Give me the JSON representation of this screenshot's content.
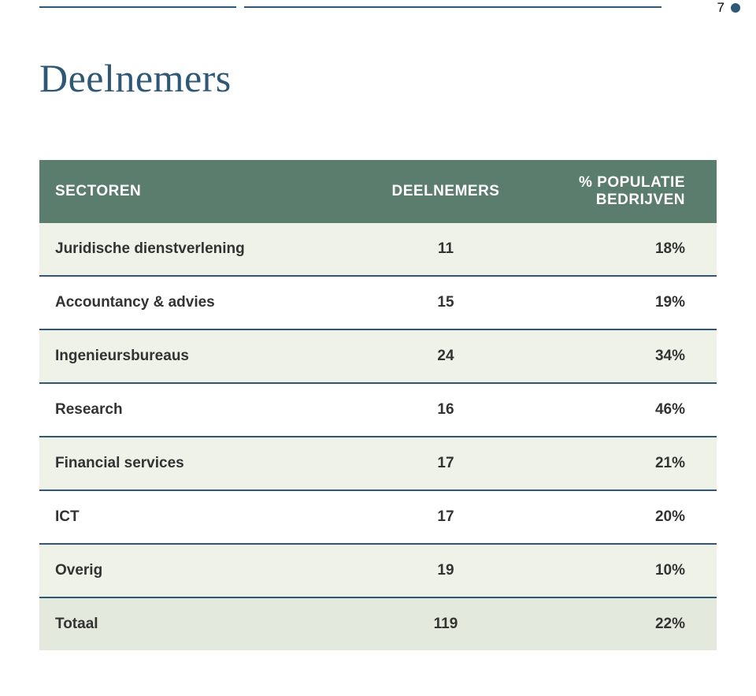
{
  "page_number": "7",
  "colors": {
    "rule": "#2f5876",
    "page_num": "#575757",
    "bullet": "#2f5876",
    "title": "#2f5876",
    "header_bg": "#5a7d6e",
    "header_text": "#ffffff",
    "row_odd_bg": "#eef2e8",
    "row_even_bg": "#ffffff",
    "row_border": "#2f5876",
    "cell_text": "#333333",
    "total_bg": "#e3e9dc"
  },
  "title": "Deelnemers",
  "table": {
    "columns": {
      "sector": "SECTOREN",
      "deelnemers": "DEELNEMERS",
      "populatie": "% POPULATIE BEDRIJVEN"
    },
    "rows": [
      {
        "sector": "Juridische dienstverlening",
        "deelnemers": "11",
        "populatie": "18%"
      },
      {
        "sector": "Accountancy & advies",
        "deelnemers": "15",
        "populatie": "19%"
      },
      {
        "sector": "Ingenieursbureaus",
        "deelnemers": "24",
        "populatie": "34%"
      },
      {
        "sector": "Research",
        "deelnemers": "16",
        "populatie": "46%"
      },
      {
        "sector": "Financial services",
        "deelnemers": "17",
        "populatie": "21%"
      },
      {
        "sector": "ICT",
        "deelnemers": "17",
        "populatie": "20%"
      },
      {
        "sector": "Overig",
        "deelnemers": "19",
        "populatie": "10%"
      }
    ],
    "total": {
      "sector": "Totaal",
      "deelnemers": "119",
      "populatie": "22%"
    }
  }
}
